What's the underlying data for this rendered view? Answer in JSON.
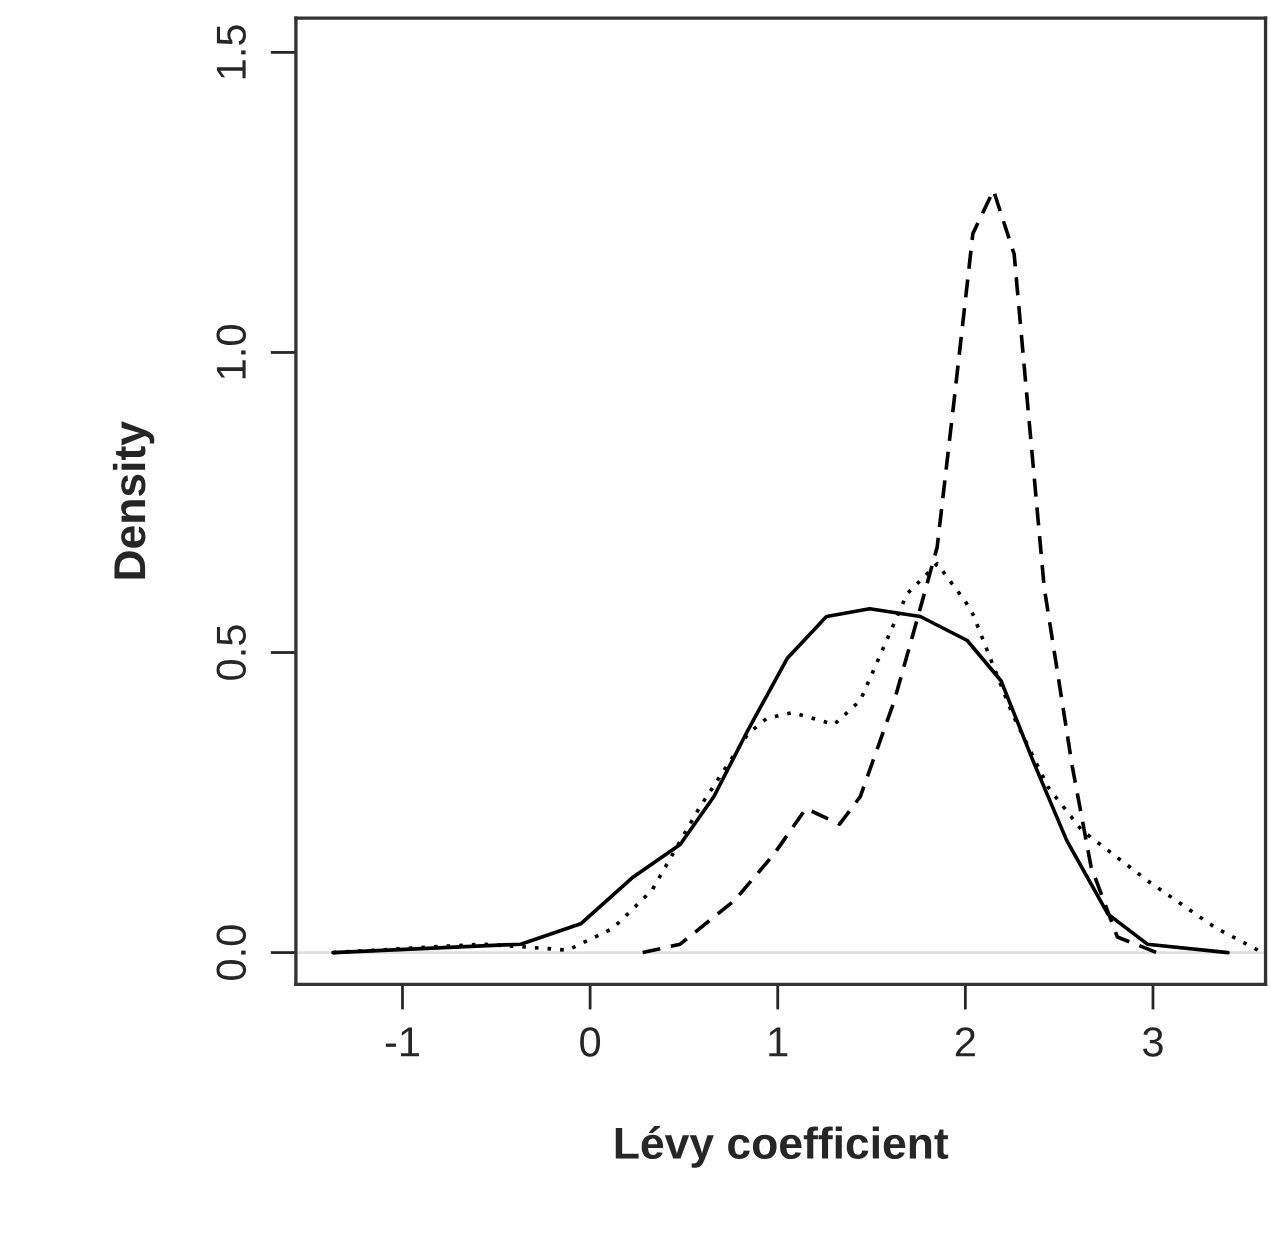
{
  "chart_data": {
    "type": "line",
    "xlabel": "Lévy coefficient",
    "ylabel": "Density",
    "xlim": [
      -1.568,
      3.6
    ],
    "ylim": [
      -0.053,
      1.557
    ],
    "xticks": [
      -1,
      0,
      1,
      2,
      3
    ],
    "yticks": [
      {
        "value": 0,
        "label": "0.0"
      },
      {
        "value": 0.5,
        "label": "0.5"
      },
      {
        "value": 1.0,
        "label": "1.0"
      },
      {
        "value": 1.5,
        "label": "1.5"
      }
    ],
    "grid": false,
    "legend": false,
    "marker": "none",
    "ref_lines": [
      {
        "axis": "y",
        "value": 0,
        "color": "#e0e0e0",
        "line_style": "solid"
      }
    ],
    "series": [
      {
        "color": "#000000",
        "line_style": "solid",
        "x": [
          -1.37,
          -0.37,
          -0.05,
          0.23,
          0.48,
          0.66,
          0.84,
          1.05,
          1.26,
          1.49,
          1.76,
          2.01,
          2.19,
          2.36,
          2.54,
          2.76,
          2.97,
          3.4
        ],
        "values": [
          0,
          0.014,
          0.048,
          0.126,
          0.18,
          0.26,
          0.37,
          0.49,
          0.56,
          0.573,
          0.56,
          0.52,
          0.453,
          0.32,
          0.187,
          0.064,
          0.014,
          0
        ]
      },
      {
        "color": "#000000",
        "line_style": "dotted",
        "x": [
          -1.37,
          -0.58,
          -0.37,
          -0.12,
          0.12,
          0.33,
          0.58,
          0.84,
          0.94,
          1.08,
          1.3,
          1.44,
          1.58,
          1.69,
          1.85,
          2.0,
          2.04,
          2.25,
          2.44,
          2.62,
          2.97,
          3.33,
          3.56
        ],
        "values": [
          0,
          0.014,
          0.01,
          0.004,
          0.04,
          0.104,
          0.24,
          0.364,
          0.39,
          0.4,
          0.38,
          0.42,
          0.52,
          0.598,
          0.648,
          0.585,
          0.564,
          0.398,
          0.276,
          0.204,
          0.12,
          0.042,
          0.004
        ]
      },
      {
        "color": "#000000",
        "line_style": "dashed",
        "x": [
          0.28,
          0.48,
          0.77,
          0.98,
          1.15,
          1.33,
          1.44,
          1.62,
          1.76,
          1.85,
          1.94,
          2.04,
          2.15,
          2.26,
          2.33,
          2.42,
          2.47,
          2.57,
          2.67,
          2.81,
          3.02
        ],
        "values": [
          0,
          0.014,
          0.087,
          0.164,
          0.24,
          0.214,
          0.26,
          0.418,
          0.574,
          0.676,
          0.92,
          1.198,
          1.27,
          1.164,
          0.92,
          0.609,
          0.509,
          0.31,
          0.143,
          0.026,
          0
        ]
      }
    ]
  }
}
